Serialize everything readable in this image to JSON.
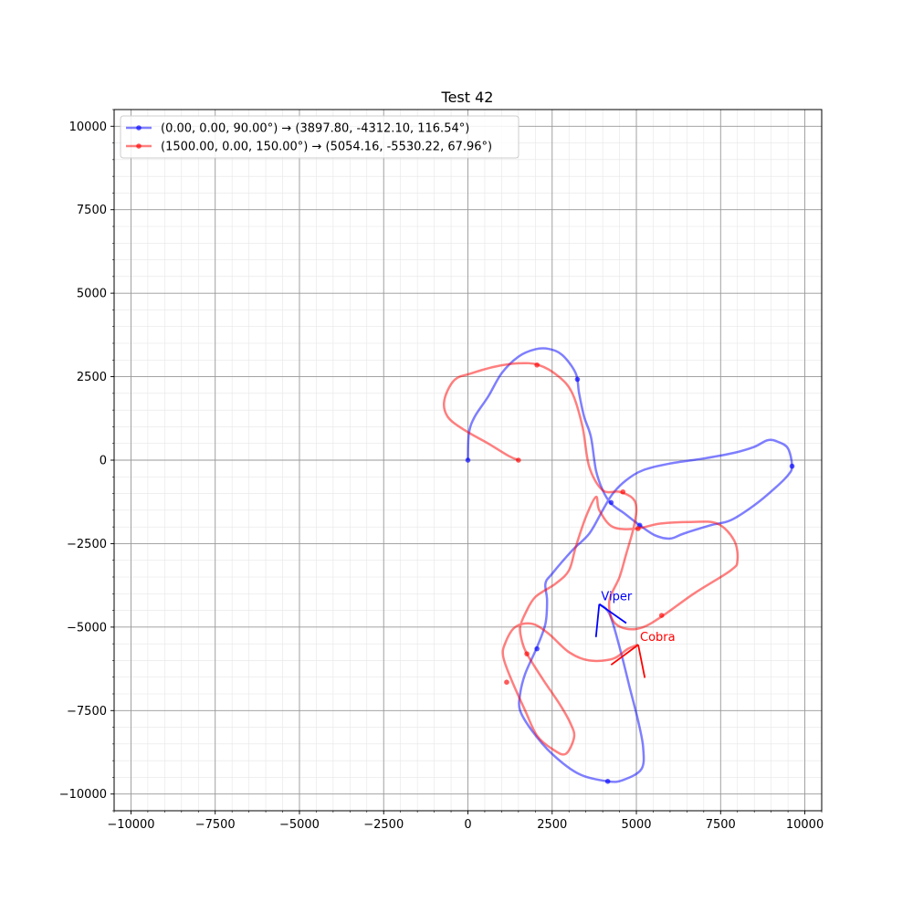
{
  "chart_data": {
    "type": "line",
    "title": "Test 42",
    "xlabel": "",
    "ylabel": "",
    "xlim": [
      -10500,
      10500
    ],
    "ylim": [
      -10500,
      10500
    ],
    "xticks": [
      -10000,
      -7500,
      -5000,
      -2500,
      0,
      2500,
      5000,
      7500,
      10000
    ],
    "yticks": [
      -10000,
      -7500,
      -5000,
      -2500,
      0,
      2500,
      5000,
      7500,
      10000
    ],
    "minor_step": 500,
    "grid": true,
    "legend_position": "upper-left",
    "series": [
      {
        "name": "(0.00, 0.00, 90.00°) → (3897.80, -4312.10, 116.54°)",
        "color": "#0000ff",
        "path": [
          [
            0,
            0
          ],
          [
            30,
            800
          ],
          [
            200,
            1300
          ],
          [
            600,
            1900
          ],
          [
            1000,
            2600
          ],
          [
            1500,
            3100
          ],
          [
            2000,
            3320
          ],
          [
            2400,
            3330
          ],
          [
            2800,
            3150
          ],
          [
            3200,
            2600
          ],
          [
            3300,
            2000
          ],
          [
            3450,
            1300
          ],
          [
            3650,
            700
          ],
          [
            3800,
            -300
          ],
          [
            4000,
            -900
          ],
          [
            4250,
            -1300
          ],
          [
            4650,
            -1600
          ],
          [
            5100,
            -1950
          ],
          [
            5550,
            -2250
          ],
          [
            6000,
            -2350
          ],
          [
            6400,
            -2200
          ],
          [
            7200,
            -1950
          ],
          [
            7800,
            -1800
          ],
          [
            8500,
            -1350
          ],
          [
            9100,
            -850
          ],
          [
            9500,
            -450
          ],
          [
            9620,
            -180
          ],
          [
            9500,
            350
          ],
          [
            9200,
            550
          ],
          [
            8900,
            600
          ],
          [
            8500,
            400
          ],
          [
            7900,
            220
          ],
          [
            7000,
            50
          ],
          [
            6000,
            -100
          ],
          [
            5200,
            -300
          ],
          [
            4700,
            -600
          ],
          [
            4300,
            -1000
          ],
          [
            4000,
            -1500
          ],
          [
            3600,
            -2200
          ],
          [
            3100,
            -2700
          ],
          [
            2500,
            -3400
          ],
          [
            2300,
            -3700
          ],
          [
            2350,
            -4200
          ],
          [
            2300,
            -4900
          ],
          [
            2050,
            -5600
          ],
          [
            1700,
            -6400
          ],
          [
            1550,
            -7000
          ],
          [
            1550,
            -7500
          ],
          [
            1900,
            -8100
          ],
          [
            2500,
            -8800
          ],
          [
            3300,
            -9400
          ],
          [
            4150,
            -9620
          ],
          [
            4600,
            -9580
          ],
          [
            5150,
            -9250
          ],
          [
            5200,
            -8600
          ],
          [
            5050,
            -7800
          ],
          [
            4800,
            -6800
          ],
          [
            4500,
            -5600
          ],
          [
            4200,
            -4600
          ],
          [
            3897.8,
            -4312.1
          ]
        ],
        "markers": [
          [
            0,
            0
          ],
          [
            3250,
            2420
          ],
          [
            4250,
            -1270
          ],
          [
            5100,
            -1950
          ],
          [
            9620,
            -180
          ],
          [
            2050,
            -5650
          ],
          [
            4150,
            -9620
          ]
        ]
      },
      {
        "name": "(1500.00, 0.00, 150.00°) → (5054.16, -5530.22, 67.96°)",
        "color": "#ff0000",
        "path": [
          [
            1500,
            0
          ],
          [
            1200,
            130
          ],
          [
            600,
            500
          ],
          [
            -100,
            900
          ],
          [
            -600,
            1300
          ],
          [
            -700,
            1800
          ],
          [
            -400,
            2400
          ],
          [
            100,
            2600
          ],
          [
            800,
            2800
          ],
          [
            1500,
            2900
          ],
          [
            2100,
            2850
          ],
          [
            2700,
            2500
          ],
          [
            3100,
            2000
          ],
          [
            3400,
            1000
          ],
          [
            3600,
            -200
          ],
          [
            4000,
            -900
          ],
          [
            4500,
            -950
          ],
          [
            4900,
            -1150
          ],
          [
            5000,
            -1500
          ],
          [
            4900,
            -2100
          ],
          [
            4700,
            -2800
          ],
          [
            4500,
            -3500
          ],
          [
            4200,
            -4200
          ],
          [
            4300,
            -4800
          ],
          [
            4700,
            -5050
          ],
          [
            5200,
            -5000
          ],
          [
            5800,
            -4650
          ],
          [
            6700,
            -4000
          ],
          [
            7800,
            -3300
          ],
          [
            8000,
            -3000
          ],
          [
            7900,
            -2400
          ],
          [
            7400,
            -1900
          ],
          [
            6600,
            -1850
          ],
          [
            5700,
            -1900
          ],
          [
            5000,
            -2050
          ],
          [
            4300,
            -2000
          ],
          [
            3900,
            -1500
          ],
          [
            3800,
            -1100
          ],
          [
            3500,
            -1700
          ],
          [
            3200,
            -2600
          ],
          [
            3000,
            -3300
          ],
          [
            2600,
            -3700
          ],
          [
            2000,
            -4100
          ],
          [
            1700,
            -4600
          ],
          [
            1550,
            -5000
          ],
          [
            1600,
            -5400
          ],
          [
            1750,
            -5800
          ],
          [
            2250,
            -6600
          ],
          [
            2750,
            -7350
          ],
          [
            3050,
            -7900
          ],
          [
            3150,
            -8300
          ],
          [
            2900,
            -8800
          ],
          [
            2500,
            -8650
          ],
          [
            2050,
            -8250
          ],
          [
            1700,
            -7500
          ],
          [
            1300,
            -6600
          ],
          [
            1050,
            -5900
          ],
          [
            1100,
            -5500
          ],
          [
            1400,
            -5000
          ],
          [
            1900,
            -4900
          ],
          [
            2400,
            -5200
          ],
          [
            3000,
            -5750
          ],
          [
            3600,
            -6000
          ],
          [
            4300,
            -5950
          ],
          [
            4750,
            -5650
          ],
          [
            5054.16,
            -5530.22
          ]
        ],
        "markers": [
          [
            1500,
            0
          ],
          [
            2050,
            2850
          ],
          [
            4600,
            -950
          ],
          [
            5050,
            -2050
          ],
          [
            5750,
            -4650
          ],
          [
            1750,
            -5800
          ],
          [
            1150,
            -6650
          ]
        ]
      }
    ],
    "annotations": [
      {
        "label": "Viper",
        "color": "#0000ff",
        "point": [
          3897.8,
          -4312.1
        ],
        "arrow_end": [
          4700,
          -4880
        ],
        "branch_end": [
          3800,
          -5300
        ]
      },
      {
        "label": "Cobra",
        "color": "#ff0000",
        "point": [
          5054.16,
          -5530.22
        ],
        "arrow_end": [
          5250,
          -6520
        ],
        "branch_end": [
          4250,
          -6130
        ]
      }
    ]
  }
}
